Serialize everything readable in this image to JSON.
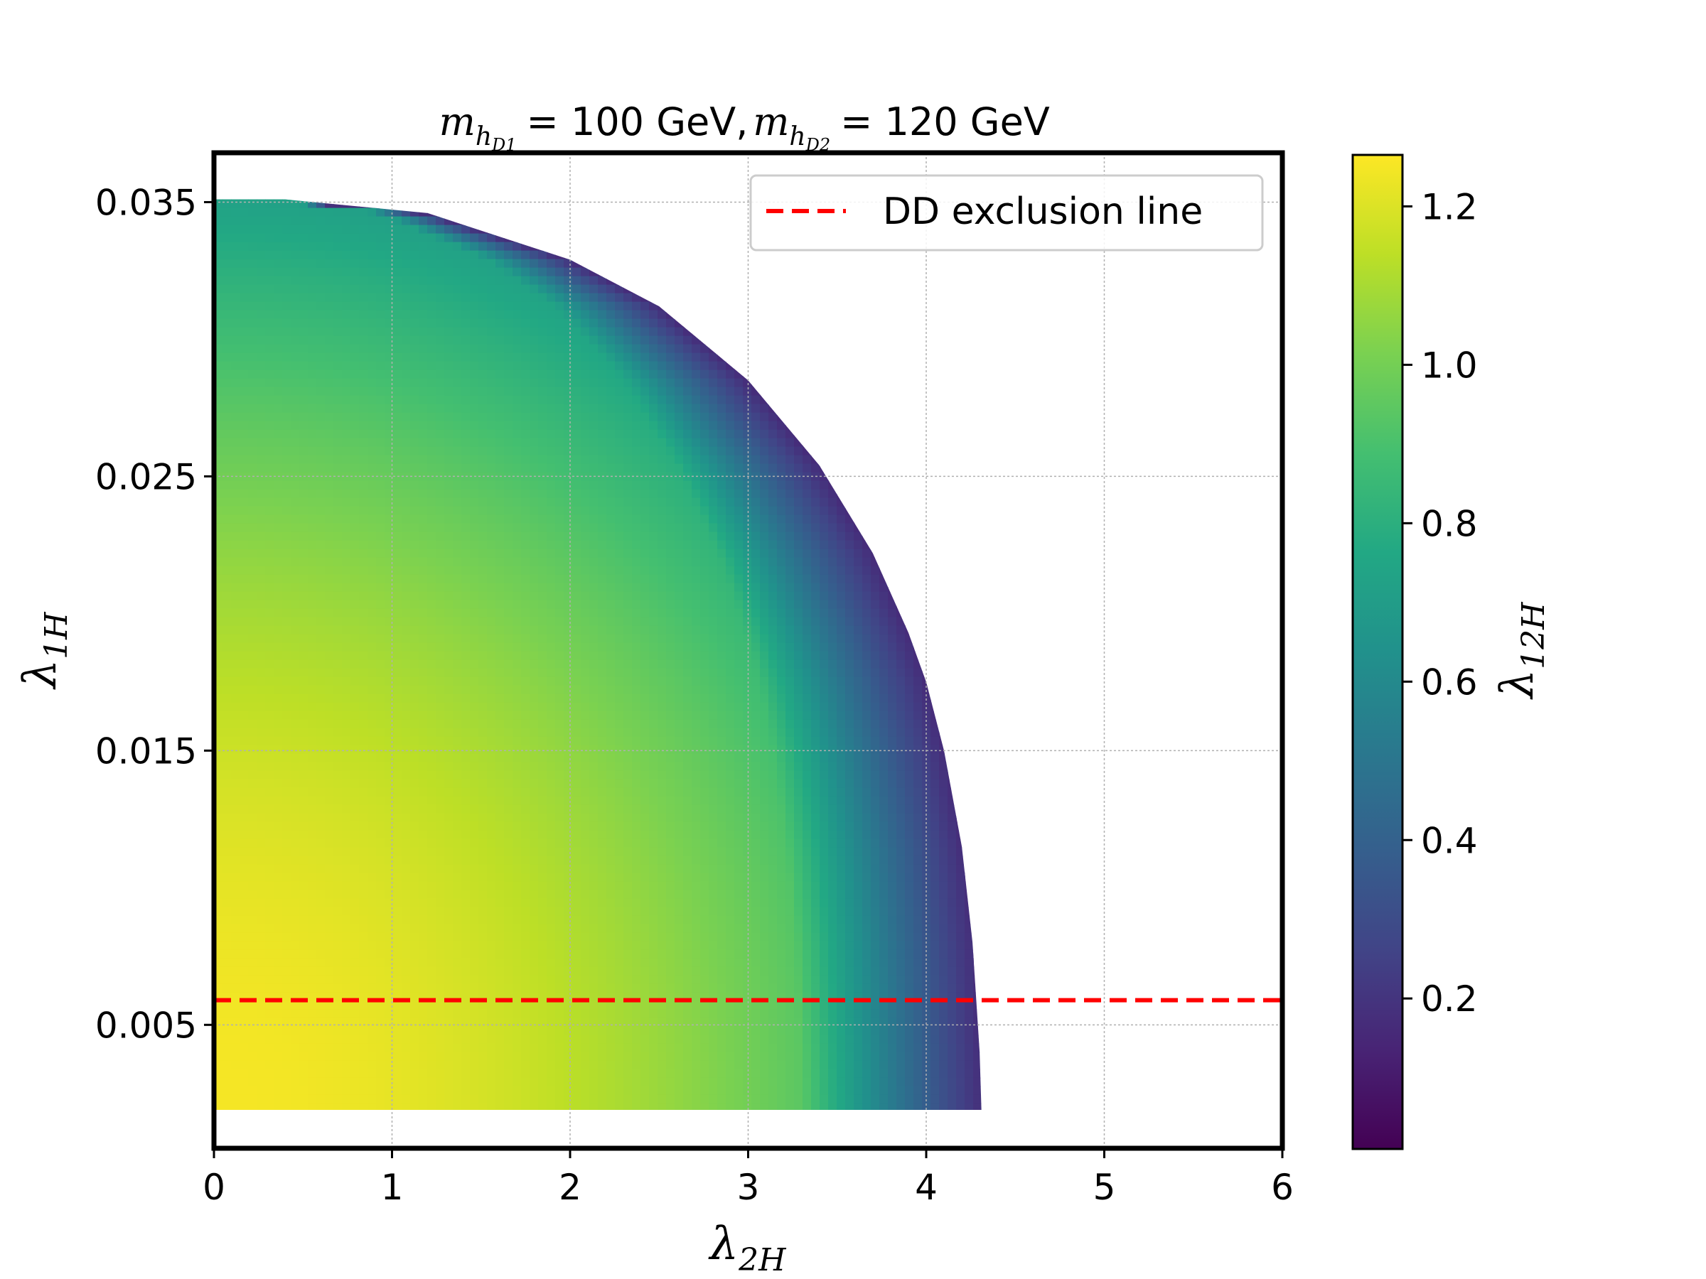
{
  "chart_data": {
    "type": "scatter",
    "title": {
      "m1_symbol": "m",
      "m1_subscript": "h",
      "m1_subsubscript": "D1",
      "m1_value": "= 100 GeV,",
      "m2_symbol": "m",
      "m2_subscript": "h",
      "m2_subsubscript": "D2",
      "m2_value": "= 120 GeV"
    },
    "xlabel": {
      "symbol": "λ",
      "subscript": "2H"
    },
    "ylabel": {
      "symbol": "λ",
      "subscript": "1H"
    },
    "colorbar_label": {
      "symbol": "λ",
      "subscript": "12H"
    },
    "xlim": [
      0,
      6
    ],
    "ylim": [
      0.0005,
      0.0368
    ],
    "x_ticks": [
      0,
      1,
      2,
      3,
      4,
      5,
      6
    ],
    "x_tick_labels": [
      "0",
      "1",
      "2",
      "3",
      "4",
      "5",
      "6"
    ],
    "y_ticks": [
      0.005,
      0.015,
      0.025,
      0.035
    ],
    "y_tick_labels": [
      "0.005",
      "0.015",
      "0.025",
      "0.035"
    ],
    "colorbar_range": [
      0.01,
      1.265
    ],
    "colorbar_ticks": [
      0.2,
      0.4,
      0.6,
      0.8,
      1.0,
      1.2
    ],
    "colorbar_tick_labels": [
      "0.2",
      "0.4",
      "0.6",
      "0.8",
      "1.0",
      "1.2"
    ],
    "colormap": "viridis",
    "region": {
      "description_boundary": "lambda12H = 0 at upper-right boundary",
      "x_min": 0,
      "y_min": 0.0019,
      "y_max": 0.0351,
      "x_at_ymin": 4.31,
      "boundary_points": [
        {
          "x": 0.0,
          "y": 0.0351
        },
        {
          "x": 0.4,
          "y": 0.0351
        },
        {
          "x": 1.2,
          "y": 0.0346
        },
        {
          "x": 2.0,
          "y": 0.0329
        },
        {
          "x": 2.5,
          "y": 0.0312
        },
        {
          "x": 3.0,
          "y": 0.0285
        },
        {
          "x": 3.4,
          "y": 0.0254
        },
        {
          "x": 3.7,
          "y": 0.0222
        },
        {
          "x": 3.9,
          "y": 0.0193
        },
        {
          "x": 4.0,
          "y": 0.0175
        },
        {
          "x": 4.1,
          "y": 0.015
        },
        {
          "x": 4.2,
          "y": 0.0115
        },
        {
          "x": 4.26,
          "y": 0.008
        },
        {
          "x": 4.3,
          "y": 0.004
        },
        {
          "x": 4.31,
          "y": 0.0019
        }
      ]
    },
    "dd_exclusion_line": {
      "y": 0.0059,
      "color": "#ff0000",
      "style": "dashed"
    },
    "legend": {
      "entries": [
        "DD exclusion line"
      ],
      "location": "top-right"
    },
    "grid": true
  }
}
